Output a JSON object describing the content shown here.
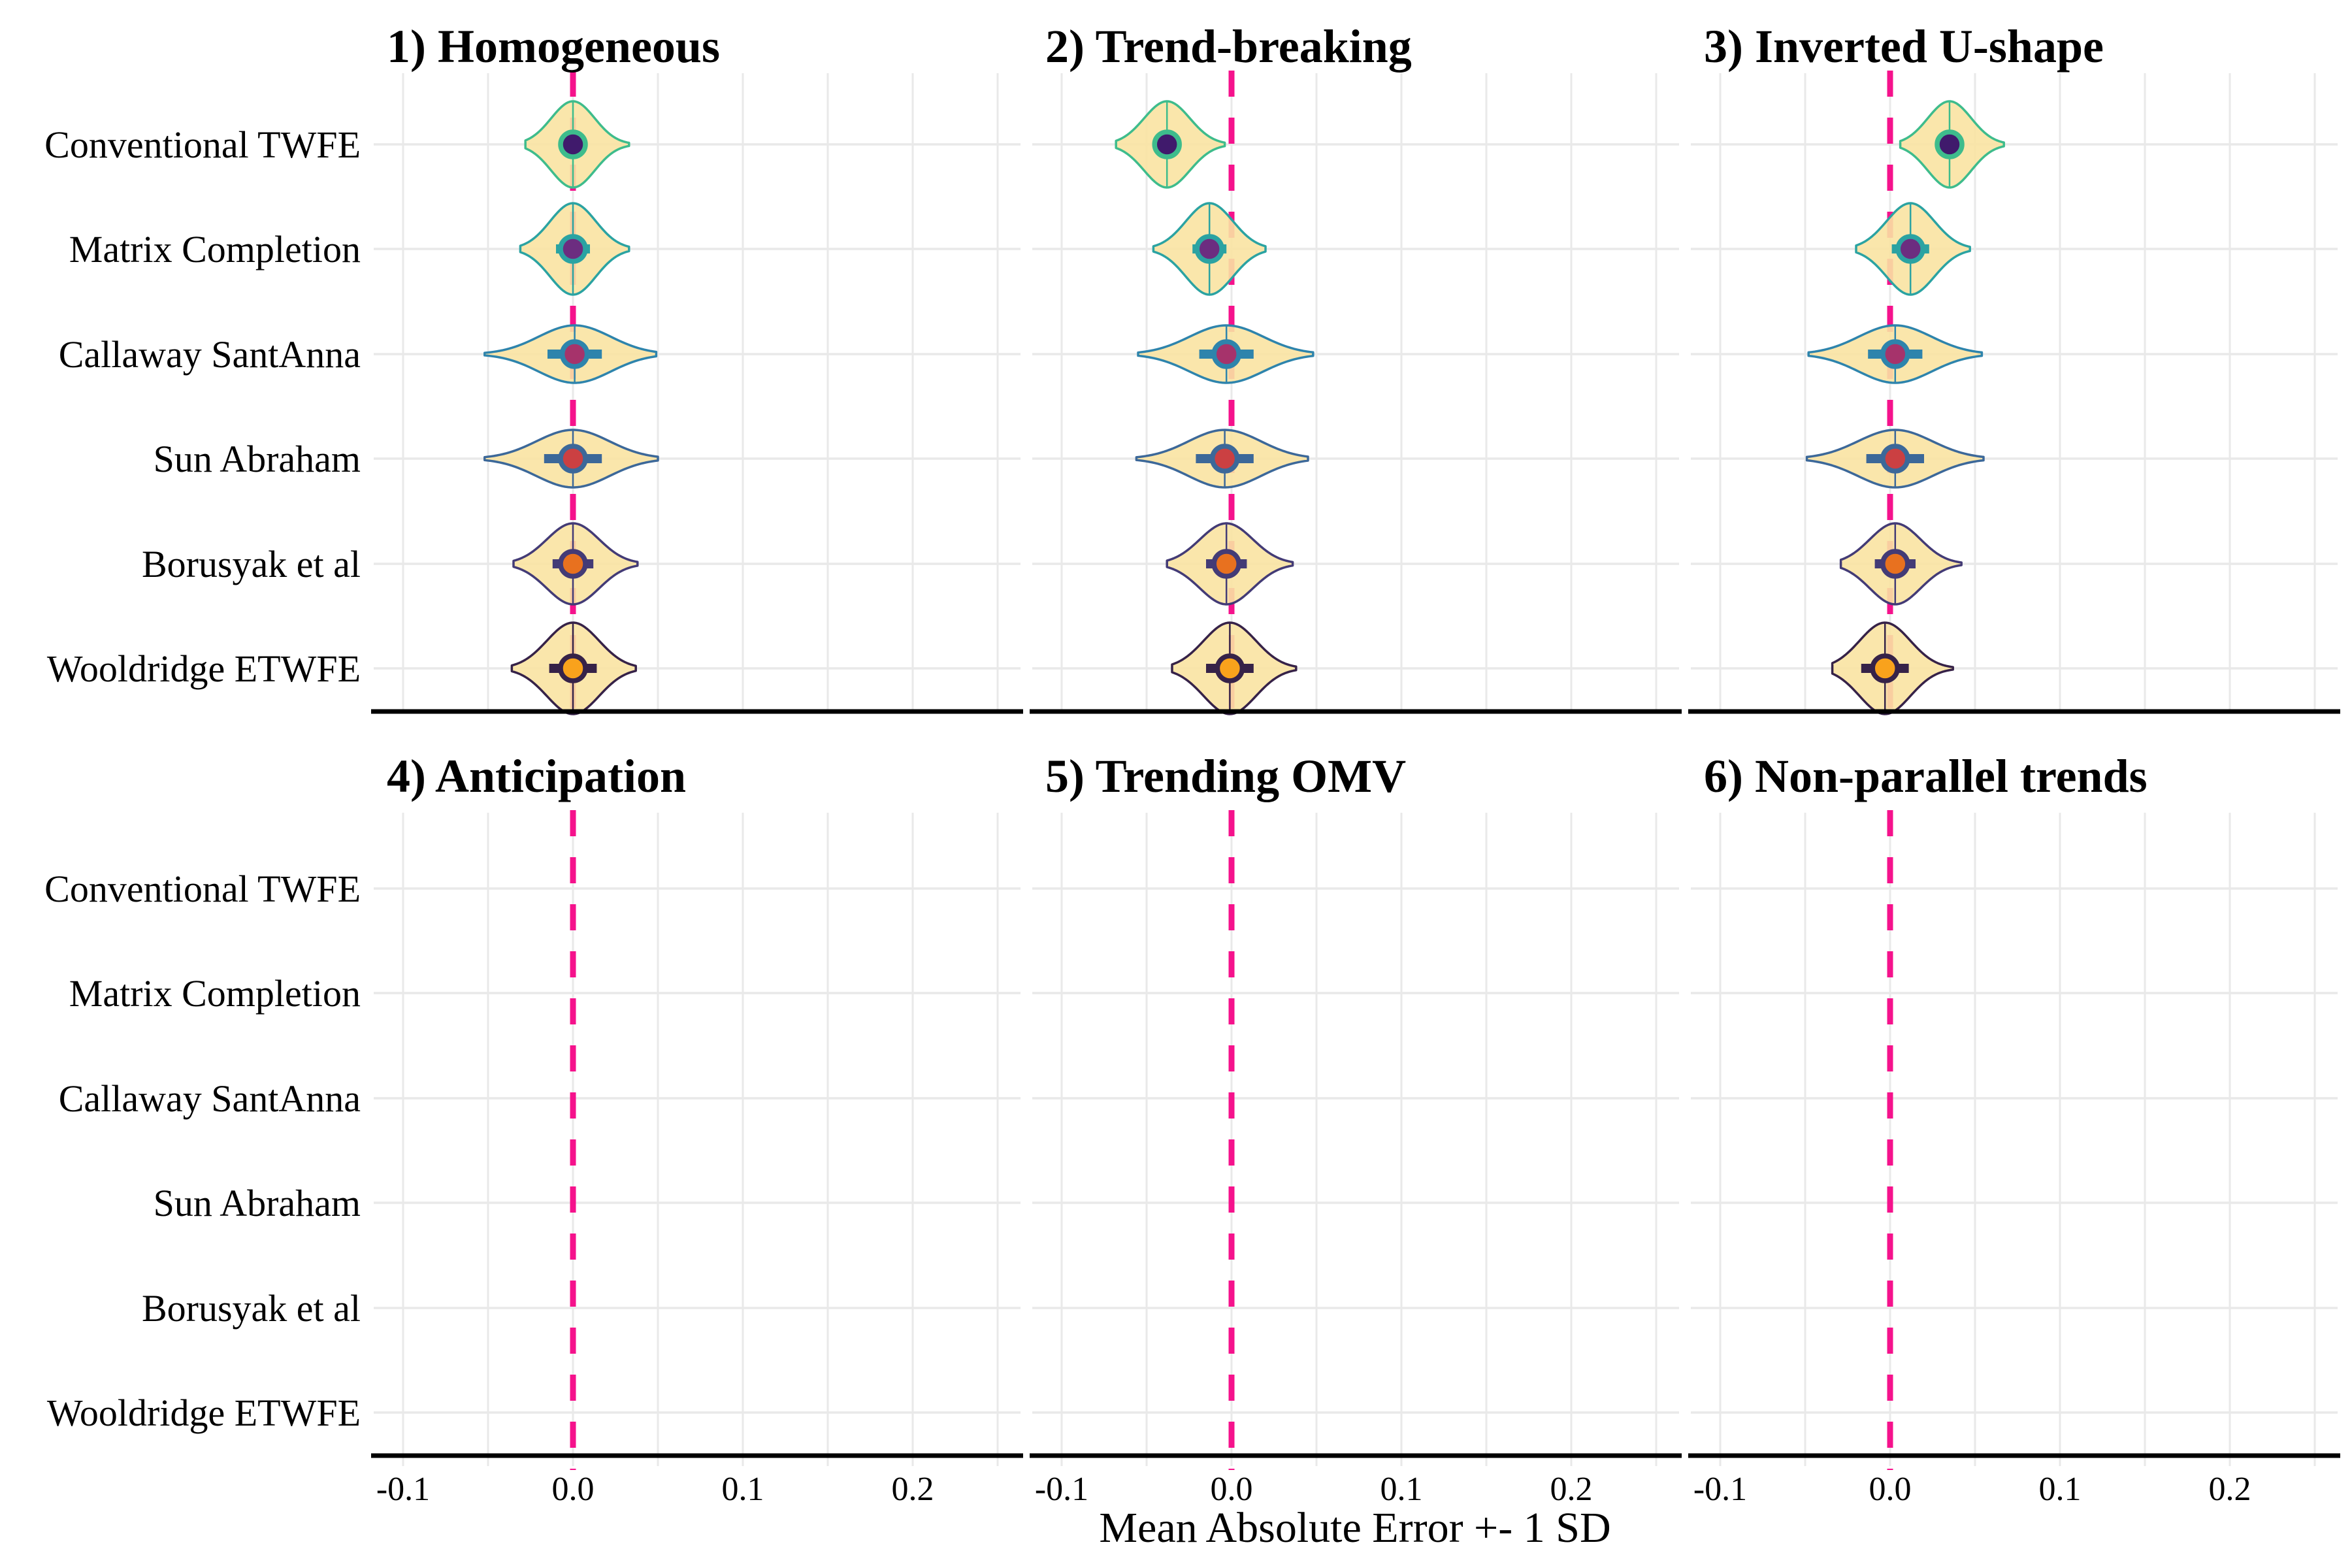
{
  "chart_data": {
    "type": "violin",
    "xlabel": "Mean Absolute Error +- 1 SD",
    "x_ticks": {
      "values": [
        -0.1,
        0.0,
        0.1,
        0.2
      ],
      "labels": [
        "-0.1",
        "0.0",
        "0.1",
        "0.2"
      ]
    },
    "x_gridlines": [
      -0.1,
      -0.05,
      0.0,
      0.05,
      0.1,
      0.15,
      0.2,
      0.25
    ],
    "x_domain": [
      -0.117,
      0.263
    ],
    "reference_line": {
      "value": 0.0,
      "style": "dashed"
    },
    "estimators": [
      "Conventional TWFE",
      "Matrix Completion",
      "Callaway SantAnna",
      "Sun Abraham",
      "Borusyak et al",
      "Wooldridge ETWFE"
    ],
    "facets": [
      {
        "id": 1,
        "title": "1) Homogeneous",
        "grid_row": 0,
        "grid_col": 0,
        "series": [
          {
            "estimator": "Conventional TWFE",
            "mean": 0.0,
            "sd": 0.008,
            "min": -0.028,
            "max": 0.033,
            "peak": 66
          },
          {
            "estimator": "Matrix Completion",
            "mean": 0.0,
            "sd": 0.01,
            "min": -0.031,
            "max": 0.033,
            "peak": 70
          },
          {
            "estimator": "Callaway SantAnna",
            "mean": 0.001,
            "sd": 0.016,
            "min": -0.052,
            "max": 0.049,
            "peak": 44
          },
          {
            "estimator": "Sun Abraham",
            "mean": 0.0,
            "sd": 0.017,
            "min": -0.052,
            "max": 0.05,
            "peak": 44
          },
          {
            "estimator": "Borusyak et al",
            "mean": 0.0,
            "sd": 0.012,
            "min": -0.035,
            "max": 0.038,
            "peak": 62
          },
          {
            "estimator": "Wooldridge ETWFE",
            "mean": 0.0,
            "sd": 0.014,
            "min": -0.036,
            "max": 0.037,
            "peak": 70
          }
        ]
      },
      {
        "id": 2,
        "title": "2) Trend-breaking",
        "grid_row": 0,
        "grid_col": 1,
        "series": [
          {
            "estimator": "Conventional TWFE",
            "mean": -0.038,
            "sd": 0.008,
            "min": -0.068,
            "max": -0.004,
            "peak": 66
          },
          {
            "estimator": "Matrix Completion",
            "mean": -0.013,
            "sd": 0.01,
            "min": -0.046,
            "max": 0.02,
            "peak": 70
          },
          {
            "estimator": "Callaway SantAnna",
            "mean": -0.003,
            "sd": 0.016,
            "min": -0.055,
            "max": 0.048,
            "peak": 44
          },
          {
            "estimator": "Sun Abraham",
            "mean": -0.004,
            "sd": 0.017,
            "min": -0.056,
            "max": 0.045,
            "peak": 44
          },
          {
            "estimator": "Borusyak et al",
            "mean": -0.003,
            "sd": 0.012,
            "min": -0.038,
            "max": 0.036,
            "peak": 62
          },
          {
            "estimator": "Wooldridge ETWFE",
            "mean": -0.001,
            "sd": 0.014,
            "min": -0.035,
            "max": 0.038,
            "peak": 70
          }
        ]
      },
      {
        "id": 3,
        "title": "3) Inverted U-shape",
        "grid_row": 0,
        "grid_col": 2,
        "series": [
          {
            "estimator": "Conventional TWFE",
            "mean": 0.035,
            "sd": 0.008,
            "min": 0.006,
            "max": 0.067,
            "peak": 66
          },
          {
            "estimator": "Matrix Completion",
            "mean": 0.012,
            "sd": 0.011,
            "min": -0.02,
            "max": 0.047,
            "peak": 70
          },
          {
            "estimator": "Callaway SantAnna",
            "mean": 0.003,
            "sd": 0.016,
            "min": -0.048,
            "max": 0.054,
            "peak": 44
          },
          {
            "estimator": "Sun Abraham",
            "mean": 0.003,
            "sd": 0.017,
            "min": -0.049,
            "max": 0.055,
            "peak": 44
          },
          {
            "estimator": "Borusyak et al",
            "mean": 0.003,
            "sd": 0.012,
            "min": -0.029,
            "max": 0.042,
            "peak": 62
          },
          {
            "estimator": "Wooldridge ETWFE",
            "mean": -0.003,
            "sd": 0.014,
            "min": -0.034,
            "max": 0.037,
            "peak": 70
          }
        ]
      },
      {
        "id": 4,
        "title": "4) Anticipation",
        "grid_row": 1,
        "grid_col": 0,
        "series": []
      },
      {
        "id": 5,
        "title": "5) Trending OMV",
        "grid_row": 1,
        "grid_col": 1,
        "series": []
      },
      {
        "id": 6,
        "title": "6) Non-parallel trends",
        "grid_row": 1,
        "grid_col": 2,
        "series": []
      }
    ]
  },
  "style": {
    "background": "#FFFFFF",
    "violin_fill": "#FAE3A2",
    "violin_fill_opacity": 0.9,
    "outline_colors": [
      "#3EBC8C",
      "#2BA3A2",
      "#2E84AC",
      "#3C6899",
      "#433B76",
      "#362248"
    ],
    "point_colors": [
      "#401A6C",
      "#6C2D80",
      "#A6336B",
      "#CB4042",
      "#E8711F",
      "#F9A21C"
    ],
    "reference_color": "#F5128C",
    "grid_color": "#E9E9E9",
    "axis_color": "#000000",
    "text_color": "#000000"
  }
}
